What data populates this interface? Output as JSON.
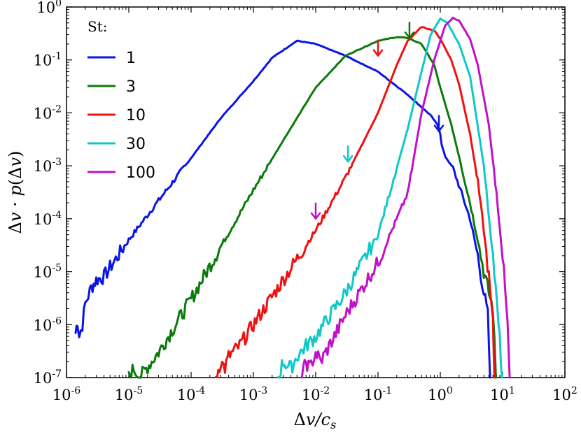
{
  "chart_data": {
    "type": "line",
    "xscale": "log",
    "yscale": "log",
    "xlabel": "Δv/c_s",
    "ylabel": "Δv·p(Δv)",
    "xlim": [
      1e-06,
      100
    ],
    "ylim": [
      1e-07,
      1
    ],
    "x_ticks": [
      {
        "base": "10",
        "exp": "-6"
      },
      {
        "base": "10",
        "exp": "-5"
      },
      {
        "base": "10",
        "exp": "-4"
      },
      {
        "base": "10",
        "exp": "-3"
      },
      {
        "base": "10",
        "exp": "-2"
      },
      {
        "base": "10",
        "exp": "-1"
      },
      {
        "base": "10",
        "exp": "0"
      },
      {
        "base": "10",
        "exp": "1"
      },
      {
        "base": "10",
        "exp": "2"
      }
    ],
    "y_ticks": [
      {
        "base": "10",
        "exp": "-7"
      },
      {
        "base": "10",
        "exp": "-6"
      },
      {
        "base": "10",
        "exp": "-5"
      },
      {
        "base": "10",
        "exp": "-4"
      },
      {
        "base": "10",
        "exp": "-3"
      },
      {
        "base": "10",
        "exp": "-2"
      },
      {
        "base": "10",
        "exp": "-1"
      },
      {
        "base": "10",
        "exp": "0"
      }
    ],
    "legend_title": "St:",
    "legend_position": "top-left",
    "series": [
      {
        "name": "1",
        "color": "#0a14e6",
        "points": [
          [
            1.4e-06,
            7e-07
          ],
          [
            1.5e-06,
            1.2e-06
          ],
          [
            1.6e-06,
            6e-07
          ],
          [
            1.8e-06,
            1e-06
          ],
          [
            2e-06,
            2.5e-06
          ],
          [
            2.5e-06,
            5e-06
          ],
          [
            3e-06,
            7e-06
          ],
          [
            4e-06,
            8e-06
          ],
          [
            5e-06,
            1.2e-05
          ],
          [
            1e-05,
            4e-05
          ],
          [
            3e-05,
            0.00022
          ],
          [
            0.0001,
            0.0014
          ],
          [
            0.0003,
            0.008
          ],
          [
            0.001,
            0.04
          ],
          [
            0.002,
            0.11
          ],
          [
            0.005,
            0.23
          ],
          [
            0.01,
            0.2
          ],
          [
            0.03,
            0.12
          ],
          [
            0.1,
            0.06
          ],
          [
            0.3,
            0.022
          ],
          [
            0.7,
            0.009
          ],
          [
            0.9,
            0.006
          ],
          [
            1.0,
            0.004
          ],
          [
            1.05,
            0.0025
          ],
          [
            1.2,
            0.0015
          ],
          [
            1.6,
            0.0009
          ],
          [
            2.2,
            0.0003
          ],
          [
            3.0,
            0.0001
          ],
          [
            4.0,
            2e-05
          ],
          [
            5.0,
            4e-06
          ],
          [
            5.8,
            1.5e-06
          ],
          [
            6.3,
            1e-07
          ]
        ],
        "arrow": [
          0.95,
          0.0045
        ]
      },
      {
        "name": "3",
        "color": "#0b7a0b",
        "points": [
          [
            1e-05,
            1e-07
          ],
          [
            1.2e-05,
            1.5e-07
          ],
          [
            1.5e-05,
            1e-07
          ],
          [
            2e-05,
            1.6e-07
          ],
          [
            3e-05,
            3e-07
          ],
          [
            5e-05,
            8e-07
          ],
          [
            0.0001,
            3e-06
          ],
          [
            0.0003,
            3e-05
          ],
          [
            0.001,
            0.00035
          ],
          [
            0.003,
            0.003
          ],
          [
            0.01,
            0.03
          ],
          [
            0.03,
            0.12
          ],
          [
            0.1,
            0.23
          ],
          [
            0.2,
            0.27
          ],
          [
            0.3,
            0.26
          ],
          [
            0.5,
            0.2
          ],
          [
            0.8,
            0.08
          ],
          [
            1.0,
            0.03
          ],
          [
            1.5,
            0.006
          ],
          [
            2.0,
            0.0015
          ],
          [
            3.0,
            0.0002
          ],
          [
            4.0,
            4e-05
          ],
          [
            5.0,
            1e-05
          ],
          [
            6.0,
            4e-06
          ],
          [
            7.0,
            2e-06
          ],
          [
            7.8,
            1e-07
          ]
        ],
        "arrow": [
          0.32,
          0.26
        ]
      },
      {
        "name": "10",
        "color": "#f01010",
        "points": [
          [
            0.00025,
            1e-07
          ],
          [
            0.0003,
            2e-07
          ],
          [
            0.00035,
            1.5e-07
          ],
          [
            0.0004,
            2.5e-07
          ],
          [
            0.0006,
            4e-07
          ],
          [
            0.001,
            1e-06
          ],
          [
            0.003,
            7e-06
          ],
          [
            0.01,
            6e-05
          ],
          [
            0.03,
            0.0006
          ],
          [
            0.1,
            0.01
          ],
          [
            0.2,
            0.08
          ],
          [
            0.3,
            0.23
          ],
          [
            0.5,
            0.42
          ],
          [
            0.8,
            0.36
          ],
          [
            1.0,
            0.25
          ],
          [
            1.5,
            0.1
          ],
          [
            2.0,
            0.035
          ],
          [
            3.0,
            0.004
          ],
          [
            4.0,
            0.0005
          ],
          [
            5.0,
            6e-05
          ],
          [
            6.0,
            8e-06
          ],
          [
            7.0,
            1e-06
          ],
          [
            7.4,
            1e-07
          ]
        ],
        "arrow": [
          0.1,
          0.12
        ]
      },
      {
        "name": "30",
        "color": "#10c8c8",
        "points": [
          [
            0.0025,
            1e-07
          ],
          [
            0.003,
            2e-07
          ],
          [
            0.004,
            1.5e-07
          ],
          [
            0.005,
            2.5e-07
          ],
          [
            0.007,
            4e-07
          ],
          [
            0.01,
            6e-07
          ],
          [
            0.03,
            4e-06
          ],
          [
            0.1,
            5e-05
          ],
          [
            0.3,
            0.005
          ],
          [
            0.5,
            0.06
          ],
          [
            0.7,
            0.3
          ],
          [
            1.0,
            0.6
          ],
          [
            1.3,
            0.5
          ],
          [
            2.0,
            0.2
          ],
          [
            3.0,
            0.05
          ],
          [
            5.0,
            0.001
          ],
          [
            7.0,
            2e-05
          ],
          [
            9.0,
            5e-07
          ],
          [
            9.8,
            1e-07
          ]
        ],
        "arrow": [
          0.033,
          0.0012
        ]
      },
      {
        "name": "100",
        "color": "#c010c8",
        "points": [
          [
            0.006,
            1e-07
          ],
          [
            0.007,
            2e-07
          ],
          [
            0.008,
            1.5e-07
          ],
          [
            0.01,
            3e-07
          ],
          [
            0.012,
            2e-07
          ],
          [
            0.02,
            6e-07
          ],
          [
            0.03,
            1.5e-06
          ],
          [
            0.1,
            1.5e-05
          ],
          [
            0.3,
            0.0003
          ],
          [
            0.5,
            0.01
          ],
          [
            0.8,
            0.1
          ],
          [
            1.2,
            0.45
          ],
          [
            1.6,
            0.62
          ],
          [
            2.0,
            0.55
          ],
          [
            3.0,
            0.25
          ],
          [
            4.0,
            0.08
          ],
          [
            6.0,
            0.006
          ],
          [
            8.0,
            0.0003
          ],
          [
            10.0,
            2e-05
          ],
          [
            12.0,
            1e-06
          ],
          [
            13.0,
            1e-07
          ]
        ],
        "arrow": [
          0.01,
          0.0001
        ]
      }
    ]
  }
}
